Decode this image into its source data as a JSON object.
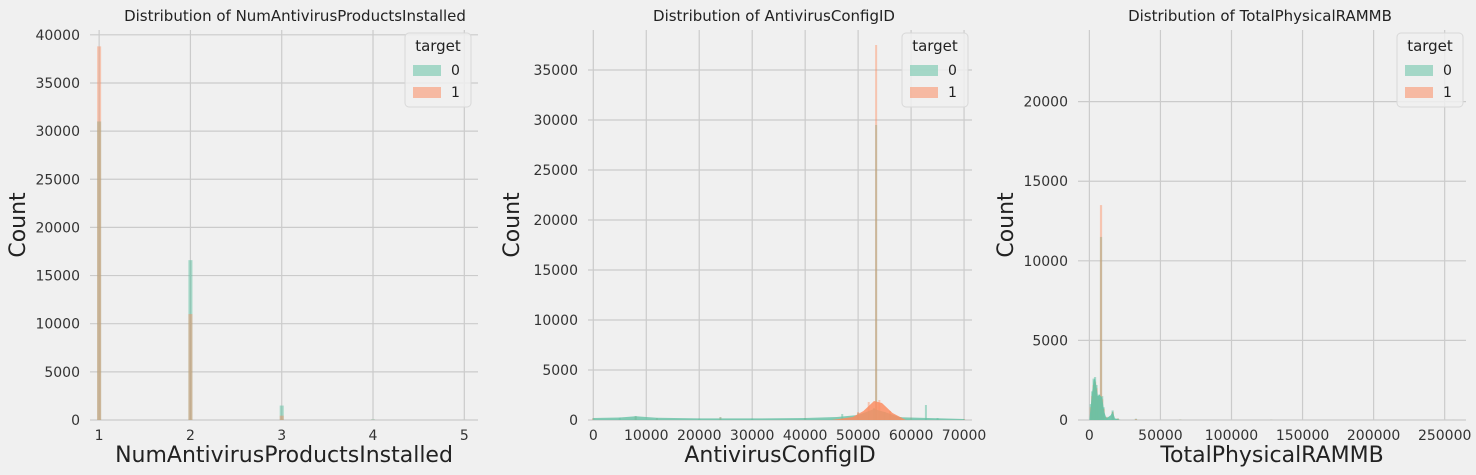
{
  "colors": {
    "target_0": "#66c2a5",
    "target_1": "#fc8d62",
    "background": "#f0f0f0",
    "grid": "#cbcbcb"
  },
  "chart_data": [
    {
      "type": "bar",
      "title": "Distribution of NumAntivirusProductsInstalled",
      "xlabel": "NumAntivirusProductsInstalled",
      "ylabel": "Count",
      "xlim": [
        0.9,
        5.15
      ],
      "ylim": [
        0,
        40500
      ],
      "xticks": [
        "1",
        "2",
        "3",
        "4",
        "5"
      ],
      "yticks": [
        "0",
        "5000",
        "10000",
        "15000",
        "20000",
        "25000",
        "30000",
        "35000",
        "40000"
      ],
      "legend": {
        "title": "target",
        "entries": [
          "0",
          "1"
        ],
        "placement": "top-right"
      },
      "series": [
        {
          "name": "0",
          "points": [
            [
              1,
              31000
            ],
            [
              2,
              16600
            ],
            [
              3,
              1500
            ],
            [
              4,
              60
            ],
            [
              5,
              5
            ]
          ]
        },
        {
          "name": "1",
          "points": [
            [
              1,
              38800
            ],
            [
              2,
              11000
            ],
            [
              3,
              450
            ],
            [
              4,
              20
            ],
            [
              5,
              2
            ]
          ]
        }
      ]
    },
    {
      "type": "bar",
      "title": "Distribution of AntivirusConfigID",
      "xlabel": "AntivirusConfigID",
      "ylabel": "Count",
      "xlim": [
        -1000,
        71500
      ],
      "ylim": [
        0,
        39000
      ],
      "xticks": [
        "0",
        "10000",
        "20000",
        "30000",
        "40000",
        "50000",
        "60000",
        "70000"
      ],
      "yticks": [
        "0",
        "5000",
        "10000",
        "15000",
        "20000",
        "25000",
        "30000",
        "35000"
      ],
      "legend": {
        "title": "target",
        "entries": [
          "0",
          "1"
        ],
        "placement": "top-right"
      },
      "series": [
        {
          "name": "0",
          "points": [
            [
              0,
              200
            ],
            [
              5000,
              250
            ],
            [
              8000,
              400
            ],
            [
              12000,
              200
            ],
            [
              20000,
              150
            ],
            [
              24000,
              300
            ],
            [
              30000,
              150
            ],
            [
              40000,
              200
            ],
            [
              47000,
              600
            ],
            [
              50000,
              700
            ],
            [
              53000,
              1200
            ],
            [
              53400,
              29500
            ],
            [
              55000,
              800
            ],
            [
              58000,
              300
            ],
            [
              62800,
              1500
            ],
            [
              65000,
              200
            ],
            [
              70000,
              100
            ]
          ]
        },
        {
          "name": "1",
          "points": [
            [
              0,
              150
            ],
            [
              8000,
              350
            ],
            [
              12000,
              150
            ],
            [
              24000,
              250
            ],
            [
              40000,
              200
            ],
            [
              50000,
              800
            ],
            [
              52000,
              1800
            ],
            [
              53400,
              37500
            ],
            [
              54000,
              2000
            ],
            [
              56000,
              900
            ],
            [
              60000,
              250
            ],
            [
              70000,
              80
            ]
          ]
        }
      ]
    },
    {
      "type": "bar",
      "title": "Distribution of TotalPhysicalRAMMB",
      "xlabel": "TotalPhysicalRAMMB",
      "ylabel": "Count",
      "xlim": [
        -8000,
        265000
      ],
      "ylim": [
        0,
        24500
      ],
      "xticks": [
        "0",
        "50000",
        "100000",
        "150000",
        "200000",
        "250000"
      ],
      "yticks": [
        "0",
        "5000",
        "10000",
        "15000",
        "20000"
      ],
      "legend": {
        "title": "target",
        "entries": [
          "0",
          "1"
        ],
        "placement": "top-right"
      },
      "series": [
        {
          "name": "0",
          "points": [
            [
              1000,
              1000
            ],
            [
              2000,
              1800
            ],
            [
              3000,
              2600
            ],
            [
              4000,
              2700
            ],
            [
              5000,
              2200
            ],
            [
              6000,
              1500
            ],
            [
              7000,
              1600
            ],
            [
              8192,
              11500
            ],
            [
              9000,
              1500
            ],
            [
              10000,
              800
            ],
            [
              12000,
              200
            ],
            [
              16384,
              600
            ],
            [
              20000,
              100
            ],
            [
              32768,
              80
            ],
            [
              64000,
              20
            ],
            [
              128000,
              10
            ],
            [
              256000,
              2
            ]
          ]
        },
        {
          "name": "1",
          "points": [
            [
              1000,
              800
            ],
            [
              2000,
              1500
            ],
            [
              3000,
              2200
            ],
            [
              4000,
              2400
            ],
            [
              5000,
              2000
            ],
            [
              6000,
              1300
            ],
            [
              7000,
              1400
            ],
            [
              8192,
              13500
            ],
            [
              9000,
              1300
            ],
            [
              10000,
              700
            ],
            [
              12000,
              180
            ],
            [
              16384,
              500
            ],
            [
              20000,
              90
            ],
            [
              32768,
              60
            ],
            [
              64000,
              15
            ],
            [
              128000,
              8
            ],
            [
              256000,
              1
            ]
          ]
        }
      ]
    }
  ]
}
